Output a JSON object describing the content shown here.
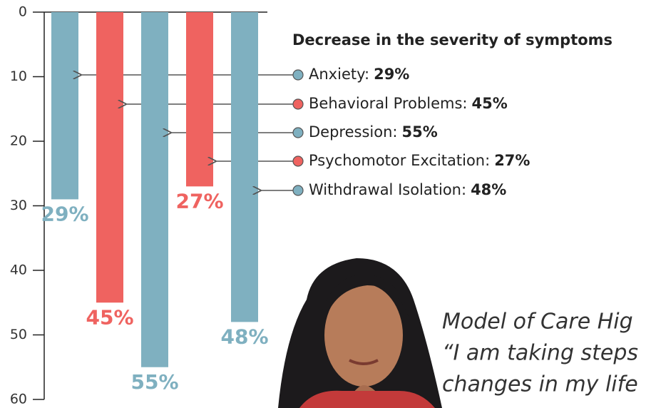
{
  "chart_data": {
    "type": "bar",
    "legend_title": "Decrease in the severity of symptoms",
    "categories": [
      "Anxiety:",
      "Behavioral Problems:",
      "Depression:",
      "Psychomotor Excitation:",
      "Withdrawal Isolation:"
    ],
    "values": [
      29,
      45,
      55,
      27,
      48
    ],
    "value_labels": [
      "29%",
      "45%",
      "55%",
      "27%",
      "48%"
    ],
    "colors": [
      "#7fb0c0",
      "#ef6360",
      "#7fb0c0",
      "#ef6360",
      "#7fb0c0"
    ],
    "ylim": [
      0,
      60
    ],
    "yticks": [
      0,
      10,
      20,
      30,
      40,
      50,
      60
    ],
    "y_inverted": true,
    "quote": [
      "Model of Care Hig",
      "“I am taking steps",
      "changes in my life"
    ]
  }
}
